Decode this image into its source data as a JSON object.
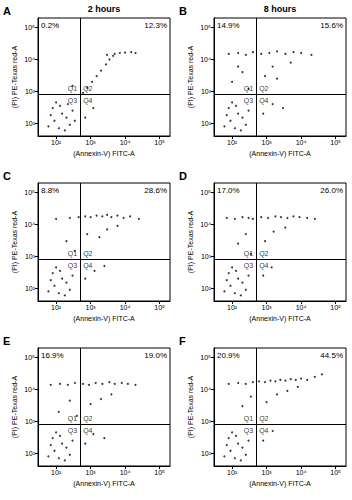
{
  "chart_data": [
    {
      "type": "scatter",
      "panel": "A",
      "title": "2 hours",
      "x_label": "(Annexin-V) FITC-A",
      "y_label": "(PI) PE-Texas red-A",
      "log": true,
      "grid": false,
      "color": "#000000",
      "marker": "circle",
      "xlim": [
        30,
        200000
      ],
      "ylim": [
        40,
        200000
      ],
      "xticks": [
        {
          "value": 100,
          "label": "10²"
        },
        {
          "value": 1000,
          "label": "10³"
        },
        {
          "value": 10000,
          "label": "10⁴"
        },
        {
          "value": 100000,
          "label": "10⁵"
        }
      ],
      "yticks": [
        {
          "value": 100,
          "label": "10²"
        },
        {
          "value": 1000,
          "label": "10³"
        },
        {
          "value": 10000,
          "label": "10⁴"
        },
        {
          "value": 100000,
          "label": "10⁵"
        }
      ],
      "gate_x": 500,
      "gate_y": 800,
      "quadrant_labels": [
        "Q1",
        "Q2",
        "Q3",
        "Q4"
      ],
      "quadrant_percentages": [
        {
          "value": 0.2,
          "label": "0.2%"
        },
        {
          "value": 12.3,
          "label": "12.3%"
        }
      ],
      "x": [
        60,
        90,
        120,
        150,
        80,
        200,
        250,
        100,
        300,
        180,
        70,
        130,
        220,
        350,
        600,
        800,
        1100,
        1500,
        2000,
        2800,
        3500,
        4500,
        5000,
        7000,
        10000,
        15000,
        20000,
        3000,
        700,
        1200,
        300
      ],
      "y": [
        80,
        120,
        70,
        200,
        300,
        150,
        90,
        450,
        250,
        60,
        180,
        350,
        400,
        120,
        900,
        1300,
        2000,
        3000,
        4500,
        7000,
        10000,
        13000,
        15000,
        16000,
        16500,
        17000,
        16000,
        14000,
        150,
        300,
        1500
      ]
    },
    {
      "type": "scatter",
      "panel": "B",
      "title": "8 hours",
      "x_label": "(Annexin-V) FITC-A",
      "y_label": "(PI) PE-Texas red-A",
      "log": true,
      "grid": false,
      "color": "#000000",
      "marker": "circle",
      "xlim": [
        30,
        200000
      ],
      "ylim": [
        40,
        200000
      ],
      "xticks": [
        {
          "value": 100,
          "label": "10²"
        },
        {
          "value": 1000,
          "label": "10³"
        },
        {
          "value": 10000,
          "label": "10⁴"
        },
        {
          "value": 100000,
          "label": "10⁵"
        }
      ],
      "yticks": [
        {
          "value": 100,
          "label": "10²"
        },
        {
          "value": 1000,
          "label": "10³"
        },
        {
          "value": 10000,
          "label": "10⁴"
        },
        {
          "value": 100000,
          "label": "10⁵"
        }
      ],
      "gate_x": 500,
      "gate_y": 800,
      "quadrant_labels": [
        "Q1",
        "Q2",
        "Q3",
        "Q4"
      ],
      "quadrant_percentages": [
        {
          "value": 14.9,
          "label": "14.9%"
        },
        {
          "value": 15.6,
          "label": "15.6%"
        }
      ],
      "x": [
        60,
        90,
        120,
        150,
        80,
        200,
        250,
        100,
        300,
        180,
        70,
        130,
        80,
        150,
        250,
        400,
        700,
        1200,
        2000,
        3500,
        6000,
        10000,
        20000,
        100,
        200,
        300,
        150,
        900,
        2000,
        1500,
        5000,
        800,
        1500,
        3000
      ],
      "y": [
        80,
        120,
        70,
        200,
        300,
        150,
        90,
        450,
        250,
        60,
        180,
        350,
        15000,
        16000,
        14000,
        17000,
        15000,
        16000,
        18000,
        15000,
        17000,
        16000,
        14000,
        2000,
        4000,
        1200,
        6000,
        3000,
        2500,
        6000,
        8000,
        200,
        400,
        300
      ]
    },
    {
      "type": "scatter",
      "panel": "C",
      "x_label": "(Annexin-V) FITC-A",
      "y_label": "(PI) PE-Texas red-A",
      "log": true,
      "grid": false,
      "color": "#000000",
      "marker": "circle",
      "xlim": [
        30,
        200000
      ],
      "ylim": [
        40,
        200000
      ],
      "xticks": [
        {
          "value": 100,
          "label": "10²"
        },
        {
          "value": 1000,
          "label": "10³"
        },
        {
          "value": 10000,
          "label": "10⁴"
        },
        {
          "value": 100000,
          "label": "10⁵"
        }
      ],
      "yticks": [
        {
          "value": 100,
          "label": "10²"
        },
        {
          "value": 1000,
          "label": "10³"
        },
        {
          "value": 10000,
          "label": "10⁴"
        },
        {
          "value": 100000,
          "label": "10⁵"
        }
      ],
      "gate_x": 500,
      "gate_y": 800,
      "quadrant_labels": [
        "Q1",
        "Q2",
        "Q3",
        "Q4"
      ],
      "quadrant_percentages": [
        {
          "value": 8.8,
          "label": "8.8%"
        },
        {
          "value": 28.6,
          "label": "28.6%"
        }
      ],
      "x": [
        60,
        90,
        120,
        150,
        80,
        200,
        250,
        100,
        300,
        180,
        70,
        130,
        100,
        250,
        450,
        700,
        1000,
        1500,
        2200,
        3000,
        4000,
        6000,
        9000,
        14000,
        25000,
        200,
        350,
        800,
        1800,
        3000,
        6000,
        700,
        1300,
        2500
      ],
      "y": [
        80,
        120,
        70,
        200,
        300,
        150,
        90,
        450,
        250,
        60,
        180,
        350,
        15000,
        16000,
        17000,
        18000,
        17000,
        19000,
        18000,
        20000,
        17000,
        19000,
        16000,
        18000,
        15000,
        3000,
        1500,
        5000,
        4000,
        7000,
        9000,
        200,
        350,
        500
      ]
    },
    {
      "type": "scatter",
      "panel": "D",
      "x_label": "(Annexin-V) FITC-A",
      "y_label": "(PI) PE-Texas red-A",
      "log": true,
      "grid": false,
      "color": "#000000",
      "marker": "circle",
      "xlim": [
        30,
        200000
      ],
      "ylim": [
        40,
        200000
      ],
      "xticks": [
        {
          "value": 100,
          "label": "10²"
        },
        {
          "value": 1000,
          "label": "10³"
        },
        {
          "value": 10000,
          "label": "10⁴"
        },
        {
          "value": 100000,
          "label": "10⁵"
        }
      ],
      "yticks": [
        {
          "value": 100,
          "label": "10²"
        },
        {
          "value": 1000,
          "label": "10³"
        },
        {
          "value": 10000,
          "label": "10⁴"
        },
        {
          "value": 100000,
          "label": "10⁵"
        }
      ],
      "gate_x": 500,
      "gate_y": 800,
      "quadrant_labels": [
        "Q1",
        "Q2",
        "Q3",
        "Q4"
      ],
      "quadrant_percentages": [
        {
          "value": 17.0,
          "label": "17.0%"
        },
        {
          "value": 26.0,
          "label": "26.0%"
        }
      ],
      "x": [
        60,
        90,
        120,
        150,
        80,
        200,
        250,
        100,
        300,
        180,
        70,
        130,
        70,
        120,
        200,
        300,
        400,
        700,
        1100,
        1800,
        2600,
        4000,
        6000,
        9000,
        15000,
        25000,
        150,
        250,
        350,
        900,
        1600,
        3500,
        800,
        1400
      ],
      "y": [
        80,
        120,
        70,
        200,
        300,
        150,
        90,
        450,
        250,
        60,
        180,
        350,
        16000,
        15000,
        17000,
        16000,
        15000,
        17000,
        16000,
        18000,
        17000,
        16000,
        18000,
        17000,
        16000,
        15000,
        2500,
        5000,
        1200,
        3000,
        6000,
        8000,
        250,
        450
      ]
    },
    {
      "type": "scatter",
      "panel": "E",
      "x_label": "(Annexin-V) FITC-A",
      "y_label": "(PI) PE-Texas red-A",
      "log": true,
      "grid": false,
      "color": "#000000",
      "marker": "circle",
      "xlim": [
        30,
        200000
      ],
      "ylim": [
        40,
        200000
      ],
      "xticks": [
        {
          "value": 100,
          "label": "10²"
        },
        {
          "value": 1000,
          "label": "10³"
        },
        {
          "value": 10000,
          "label": "10⁴"
        },
        {
          "value": 100000,
          "label": "10⁵"
        }
      ],
      "yticks": [
        {
          "value": 100,
          "label": "10²"
        },
        {
          "value": 1000,
          "label": "10³"
        },
        {
          "value": 10000,
          "label": "10⁴"
        },
        {
          "value": 100000,
          "label": "10⁵"
        }
      ],
      "gate_x": 500,
      "gate_y": 800,
      "quadrant_labels": [
        "Q1",
        "Q2",
        "Q3",
        "Q4"
      ],
      "quadrant_percentages": [
        {
          "value": 16.9,
          "label": "16.9%"
        },
        {
          "value": 19.0,
          "label": "19.0%"
        }
      ],
      "x": [
        60,
        90,
        120,
        150,
        80,
        200,
        250,
        100,
        300,
        180,
        70,
        130,
        70,
        130,
        220,
        350,
        600,
        900,
        1400,
        2200,
        3500,
        5000,
        8000,
        12000,
        20000,
        120,
        250,
        400,
        1000,
        2000,
        4000,
        700,
        1200,
        2500
      ],
      "y": [
        80,
        120,
        70,
        200,
        300,
        150,
        90,
        450,
        250,
        60,
        180,
        350,
        14000,
        15000,
        14000,
        16000,
        15000,
        14000,
        16000,
        15000,
        17000,
        15000,
        16000,
        15000,
        14000,
        2000,
        4500,
        1500,
        3500,
        5000,
        7000,
        200,
        400,
        300
      ]
    },
    {
      "type": "scatter",
      "panel": "F",
      "x_label": "(Annexin-V) FITC-A",
      "y_label": "(PI) PE-Texas red-A",
      "log": true,
      "grid": false,
      "color": "#000000",
      "marker": "circle",
      "xlim": [
        30,
        200000
      ],
      "ylim": [
        40,
        200000
      ],
      "xticks": [
        {
          "value": 100,
          "label": "10²"
        },
        {
          "value": 1000,
          "label": "10³"
        },
        {
          "value": 10000,
          "label": "10⁴"
        },
        {
          "value": 100000,
          "label": "10⁵"
        }
      ],
      "yticks": [
        {
          "value": 100,
          "label": "10²"
        },
        {
          "value": 1000,
          "label": "10³"
        },
        {
          "value": 10000,
          "label": "10⁴"
        },
        {
          "value": 100000,
          "label": "10⁵"
        }
      ],
      "gate_x": 500,
      "gate_y": 800,
      "quadrant_labels": [
        "Q1",
        "Q2",
        "Q3",
        "Q4"
      ],
      "quadrant_percentages": [
        {
          "value": 20.9,
          "label": "20.9%"
        },
        {
          "value": 44.5,
          "label": "44.5%"
        }
      ],
      "x": [
        60,
        90,
        120,
        150,
        80,
        200,
        250,
        100,
        300,
        180,
        70,
        130,
        80,
        150,
        250,
        400,
        600,
        900,
        1300,
        1800,
        2500,
        3500,
        5000,
        7000,
        10000,
        15000,
        25000,
        40000,
        200,
        350,
        1000,
        2000,
        4000,
        8000,
        800,
        1500
      ],
      "y": [
        80,
        120,
        70,
        200,
        300,
        150,
        90,
        450,
        250,
        60,
        180,
        350,
        15000,
        16000,
        15000,
        17000,
        18000,
        17000,
        19000,
        18000,
        20000,
        19000,
        21000,
        20000,
        22000,
        20000,
        25000,
        30000,
        3000,
        6000,
        4000,
        7000,
        9000,
        12000,
        250,
        500
      ]
    }
  ]
}
